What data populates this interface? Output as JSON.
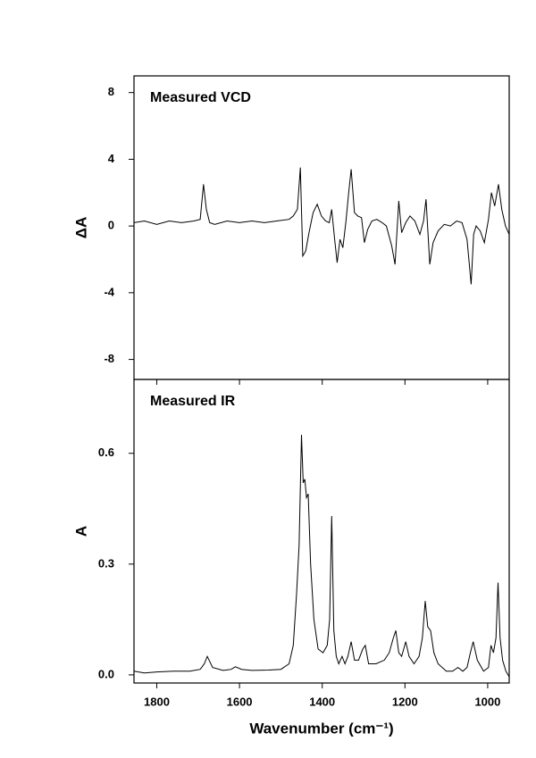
{
  "chart_data": [
    {
      "type": "line",
      "title": "Measured VCD",
      "ylabel": "ΔA",
      "x": [
        1855,
        1830,
        1800,
        1770,
        1740,
        1710,
        1695,
        1687,
        1680,
        1672,
        1660,
        1630,
        1600,
        1570,
        1540,
        1510,
        1480,
        1470,
        1460,
        1453,
        1447,
        1440,
        1432,
        1422,
        1412,
        1402,
        1392,
        1383,
        1377,
        1370,
        1364,
        1357,
        1350,
        1343,
        1336,
        1330,
        1322,
        1314,
        1305,
        1298,
        1290,
        1280,
        1268,
        1255,
        1245,
        1232,
        1224,
        1215,
        1208,
        1198,
        1188,
        1176,
        1164,
        1155,
        1149,
        1140,
        1132,
        1120,
        1105,
        1090,
        1075,
        1062,
        1050,
        1040,
        1034,
        1028,
        1018,
        1008,
        998,
        991,
        983,
        974,
        966,
        957,
        948
      ],
      "values": [
        0.2,
        0.3,
        0.1,
        0.3,
        0.2,
        0.3,
        0.4,
        2.5,
        1.0,
        0.2,
        0.1,
        0.3,
        0.2,
        0.3,
        0.2,
        0.3,
        0.4,
        0.6,
        1.0,
        3.5,
        -1.8,
        -1.5,
        -0.4,
        0.8,
        1.3,
        0.6,
        0.3,
        0.2,
        1.0,
        -0.8,
        -2.2,
        -0.8,
        -1.3,
        0.2,
        2.0,
        3.4,
        0.8,
        0.6,
        0.5,
        -1.0,
        -0.2,
        0.3,
        0.4,
        0.2,
        0.0,
        -1.2,
        -2.3,
        1.5,
        -0.4,
        0.2,
        0.6,
        0.3,
        -0.5,
        0.3,
        1.6,
        -2.3,
        -1.0,
        -0.3,
        0.1,
        0.0,
        0.3,
        0.2,
        -0.8,
        -3.5,
        -0.5,
        0.0,
        -0.3,
        -1.0,
        0.4,
        2.0,
        1.2,
        2.5,
        1.0,
        0.0,
        -0.5
      ],
      "color": "#000000",
      "xlim": [
        1855,
        948
      ],
      "xticks": [
        1800,
        1600,
        1400,
        1200,
        1000
      ],
      "ylim": [
        -9.2,
        9.0
      ],
      "yticks": [
        8,
        4,
        0,
        -4,
        -8
      ]
    },
    {
      "type": "line",
      "title": "Measured IR",
      "ylabel": "A",
      "xlabel": "Wavenumber (cm⁻¹)",
      "x": [
        1855,
        1830,
        1800,
        1760,
        1720,
        1695,
        1685,
        1678,
        1665,
        1640,
        1620,
        1610,
        1595,
        1570,
        1530,
        1500,
        1480,
        1470,
        1462,
        1456,
        1450,
        1446,
        1442,
        1438,
        1434,
        1428,
        1420,
        1410,
        1398,
        1388,
        1382,
        1377,
        1372,
        1366,
        1360,
        1352,
        1345,
        1338,
        1330,
        1322,
        1312,
        1302,
        1296,
        1288,
        1270,
        1250,
        1238,
        1228,
        1222,
        1215,
        1208,
        1198,
        1190,
        1178,
        1166,
        1158,
        1151,
        1145,
        1138,
        1130,
        1120,
        1100,
        1085,
        1072,
        1060,
        1050,
        1042,
        1035,
        1025,
        1010,
        998,
        992,
        986,
        980,
        975,
        970,
        964,
        956,
        948
      ],
      "values": [
        0.01,
        0.005,
        0.008,
        0.01,
        0.01,
        0.015,
        0.03,
        0.05,
        0.02,
        0.012,
        0.015,
        0.022,
        0.015,
        0.012,
        0.013,
        0.015,
        0.03,
        0.08,
        0.22,
        0.35,
        0.65,
        0.52,
        0.53,
        0.48,
        0.49,
        0.3,
        0.15,
        0.07,
        0.06,
        0.08,
        0.15,
        0.43,
        0.12,
        0.05,
        0.03,
        0.05,
        0.03,
        0.05,
        0.09,
        0.04,
        0.04,
        0.07,
        0.08,
        0.03,
        0.03,
        0.04,
        0.06,
        0.1,
        0.12,
        0.06,
        0.05,
        0.09,
        0.05,
        0.03,
        0.05,
        0.1,
        0.2,
        0.13,
        0.12,
        0.06,
        0.03,
        0.01,
        0.01,
        0.02,
        0.01,
        0.02,
        0.06,
        0.09,
        0.04,
        0.01,
        0.02,
        0.08,
        0.06,
        0.1,
        0.25,
        0.1,
        0.04,
        0.01,
        -0.005
      ],
      "color": "#000000",
      "xlim": [
        1855,
        948
      ],
      "xticks": [
        1800,
        1600,
        1400,
        1200,
        1000
      ],
      "ylim": [
        -0.022,
        0.8
      ],
      "yticks": [
        {
          "value": 0,
          "label": "0.0"
        },
        0.3,
        0.6
      ]
    }
  ]
}
